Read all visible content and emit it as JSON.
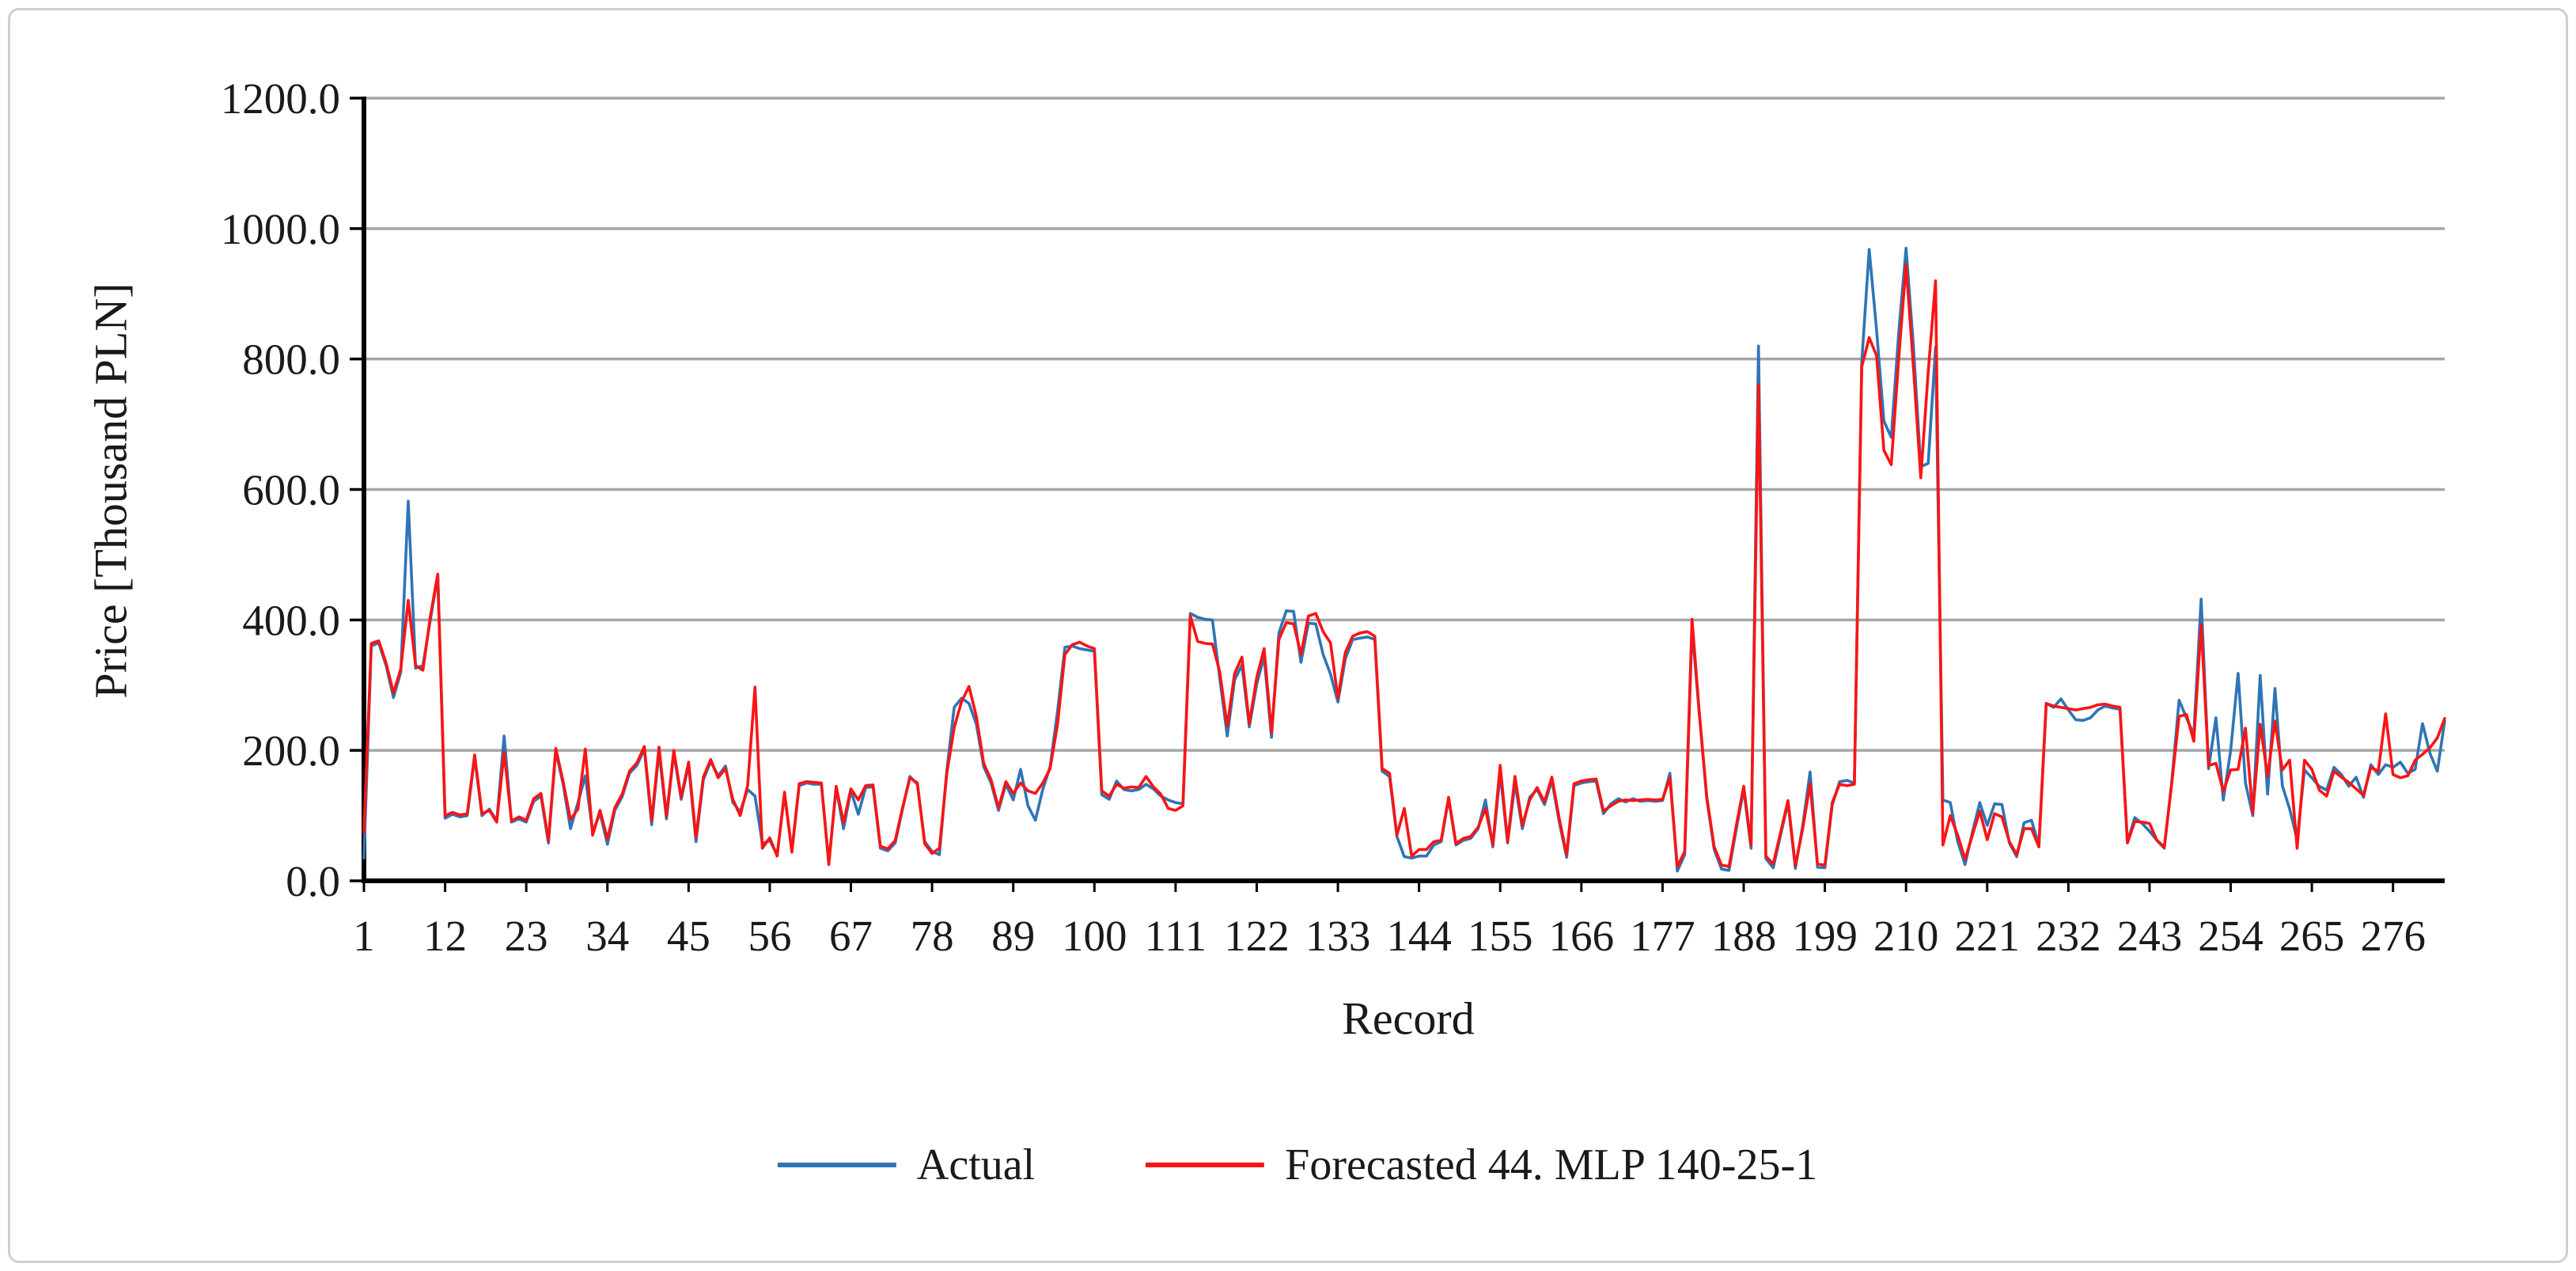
{
  "figure": {
    "y_axis_title": "Price [Thousand PLN]",
    "x_axis_title": "Record",
    "legend": {
      "actual_label": "Actual",
      "forecast_label": "Forecasted 44. MLP 140-25-1"
    },
    "colors": {
      "actual": "#2E75B6",
      "forecast": "#FB1414",
      "gridline": "#A6A6A6",
      "axis": "#000000",
      "text": "#1a1a1a"
    }
  },
  "chart_data": {
    "type": "line",
    "title": "",
    "xlabel": "Record",
    "ylabel": "Price [Thousand PLN]",
    "ylim": [
      0,
      1200
    ],
    "y_ticks": [
      0,
      200,
      400,
      600,
      800,
      1000,
      1200
    ],
    "y_tick_labels": [
      "0.0",
      "200.0",
      "400.0",
      "600.0",
      "800.0",
      "1000.0",
      "1200.0"
    ],
    "x_tick_labels": [
      1,
      12,
      23,
      34,
      45,
      56,
      67,
      78,
      89,
      100,
      111,
      122,
      133,
      144,
      155,
      166,
      177,
      188,
      199,
      210,
      221,
      232,
      243,
      254,
      265,
      276
    ],
    "x_start": 1,
    "x_count": 283,
    "grid": true,
    "legend_position": "bottom",
    "series": [
      {
        "name": "Actual",
        "color": "#2E75B6",
        "values": [
          35,
          360,
          365,
          330,
          281,
          320,
          582,
          326,
          330,
          400,
          468,
          96,
          102,
          98,
          100,
          190,
          100,
          110,
          92,
          222,
          90,
          95,
          90,
          122,
          130,
          58,
          199,
          148,
          80,
          120,
          161,
          75,
          104,
          56,
          108,
          129,
          165,
          177,
          202,
          86,
          199,
          95,
          196,
          125,
          178,
          60,
          155,
          183,
          161,
          176,
          120,
          106,
          140,
          130,
          57,
          62,
          40,
          133,
          46,
          146,
          150,
          148,
          148,
          28,
          142,
          80,
          138,
          102,
          143,
          144,
          50,
          46,
          58,
          110,
          160,
          148,
          60,
          45,
          40,
          170,
          266,
          280,
          272,
          240,
          175,
          150,
          108,
          148,
          124,
          171,
          115,
          93,
          140,
          175,
          260,
          358,
          360,
          356,
          354,
          352,
          132,
          125,
          153,
          140,
          138,
          140,
          148,
          141,
          130,
          124,
          120,
          118,
          410,
          404,
          401,
          400,
          310,
          222,
          308,
          331,
          236,
          302,
          344,
          220,
          380,
          414,
          413,
          335,
          395,
          394,
          347,
          317,
          274,
          340,
          370,
          372,
          374,
          370,
          168,
          160,
          68,
          37,
          35,
          38,
          38,
          55,
          60,
          126,
          55,
          62,
          65,
          80,
          124,
          52,
          165,
          58,
          150,
          80,
          128,
          140,
          117,
          154,
          90,
          36,
          146,
          150,
          152,
          153,
          103,
          118,
          126,
          121,
          126,
          122,
          123,
          122,
          123,
          165,
          15,
          40,
          388,
          254,
          125,
          48,
          18,
          16,
          80,
          140,
          50,
          820,
          34,
          20,
          70,
          120,
          19,
          85,
          167,
          21,
          20,
          116,
          152,
          154,
          150,
          795,
          968,
          845,
          705,
          680,
          840,
          970,
          820,
          635,
          640,
          818,
          124,
          120,
          60,
          25,
          75,
          120,
          85,
          118,
          117,
          58,
          37,
          89,
          93,
          55,
          272,
          266,
          279,
          262,
          247,
          246,
          250,
          262,
          268,
          265,
          263,
          60,
          97,
          88,
          76,
          62,
          50,
          150,
          277,
          250,
          224,
          432,
          172,
          250,
          124,
          200,
          318,
          150,
          100,
          315,
          133,
          295,
          146,
          110,
          63,
          170,
          158,
          145,
          139,
          174,
          163,
          145,
          159,
          128,
          178,
          163,
          178,
          174,
          182,
          165,
          171,
          241,
          196,
          168,
          245
        ]
      },
      {
        "name": "Forecasted 44. MLP 140-25-1",
        "color": "#FB1414",
        "values": [
          75,
          364,
          368,
          334,
          288,
          325,
          430,
          330,
          323,
          405,
          470,
          100,
          105,
          101,
          103,
          193,
          103,
          108,
          90,
          197,
          92,
          98,
          93,
          126,
          134,
          62,
          203,
          152,
          94,
          110,
          202,
          70,
          108,
          64,
          112,
          133,
          168,
          181,
          206,
          92,
          205,
          99,
          200,
          128,
          182,
          66,
          159,
          186,
          158,
          172,
          125,
          100,
          146,
          297,
          50,
          66,
          38,
          136,
          44,
          149,
          152,
          151,
          150,
          25,
          145,
          89,
          141,
          124,
          146,
          147,
          53,
          49,
          62,
          112,
          158,
          150,
          57,
          42,
          50,
          165,
          235,
          275,
          298,
          252,
          180,
          155,
          112,
          152,
          134,
          150,
          138,
          134,
          150,
          172,
          240,
          347,
          362,
          366,
          360,
          356,
          138,
          130,
          148,
          142,
          144,
          143,
          160,
          144,
          133,
          111,
          108,
          115,
          406,
          367,
          364,
          363,
          320,
          237,
          318,
          343,
          241,
          312,
          356,
          227,
          370,
          396,
          394,
          347,
          406,
          410,
          382,
          365,
          280,
          350,
          375,
          380,
          382,
          375,
          172,
          165,
          70,
          111,
          38,
          48,
          48,
          60,
          62,
          128,
          57,
          65,
          68,
          82,
          111,
          55,
          177,
          60,
          160,
          85,
          124,
          143,
          121,
          159,
          95,
          40,
          149,
          153,
          155,
          156,
          107,
          115,
          122,
          124,
          123,
          124,
          125,
          124,
          125,
          158,
          22,
          45,
          401,
          256,
          128,
          52,
          24,
          22,
          85,
          145,
          55,
          760,
          38,
          26,
          74,
          123,
          23,
          80,
          149,
          26,
          24,
          120,
          148,
          146,
          148,
          788,
          833,
          805,
          660,
          638,
          800,
          945,
          788,
          618,
          780,
          920,
          55,
          100,
          70,
          33,
          70,
          107,
          63,
          103,
          98,
          60,
          40,
          80,
          80,
          52,
          272,
          268,
          266,
          264,
          262,
          264,
          266,
          270,
          271,
          268,
          266,
          58,
          91,
          90,
          88,
          62,
          52,
          148,
          252,
          255,
          214,
          393,
          177,
          180,
          137,
          170,
          171,
          234,
          104,
          240,
          160,
          245,
          170,
          185,
          50,
          185,
          171,
          139,
          130,
          168,
          159,
          151,
          141,
          131,
          174,
          168,
          256,
          163,
          158,
          161,
          185,
          194,
          204,
          219,
          249
        ]
      }
    ]
  }
}
